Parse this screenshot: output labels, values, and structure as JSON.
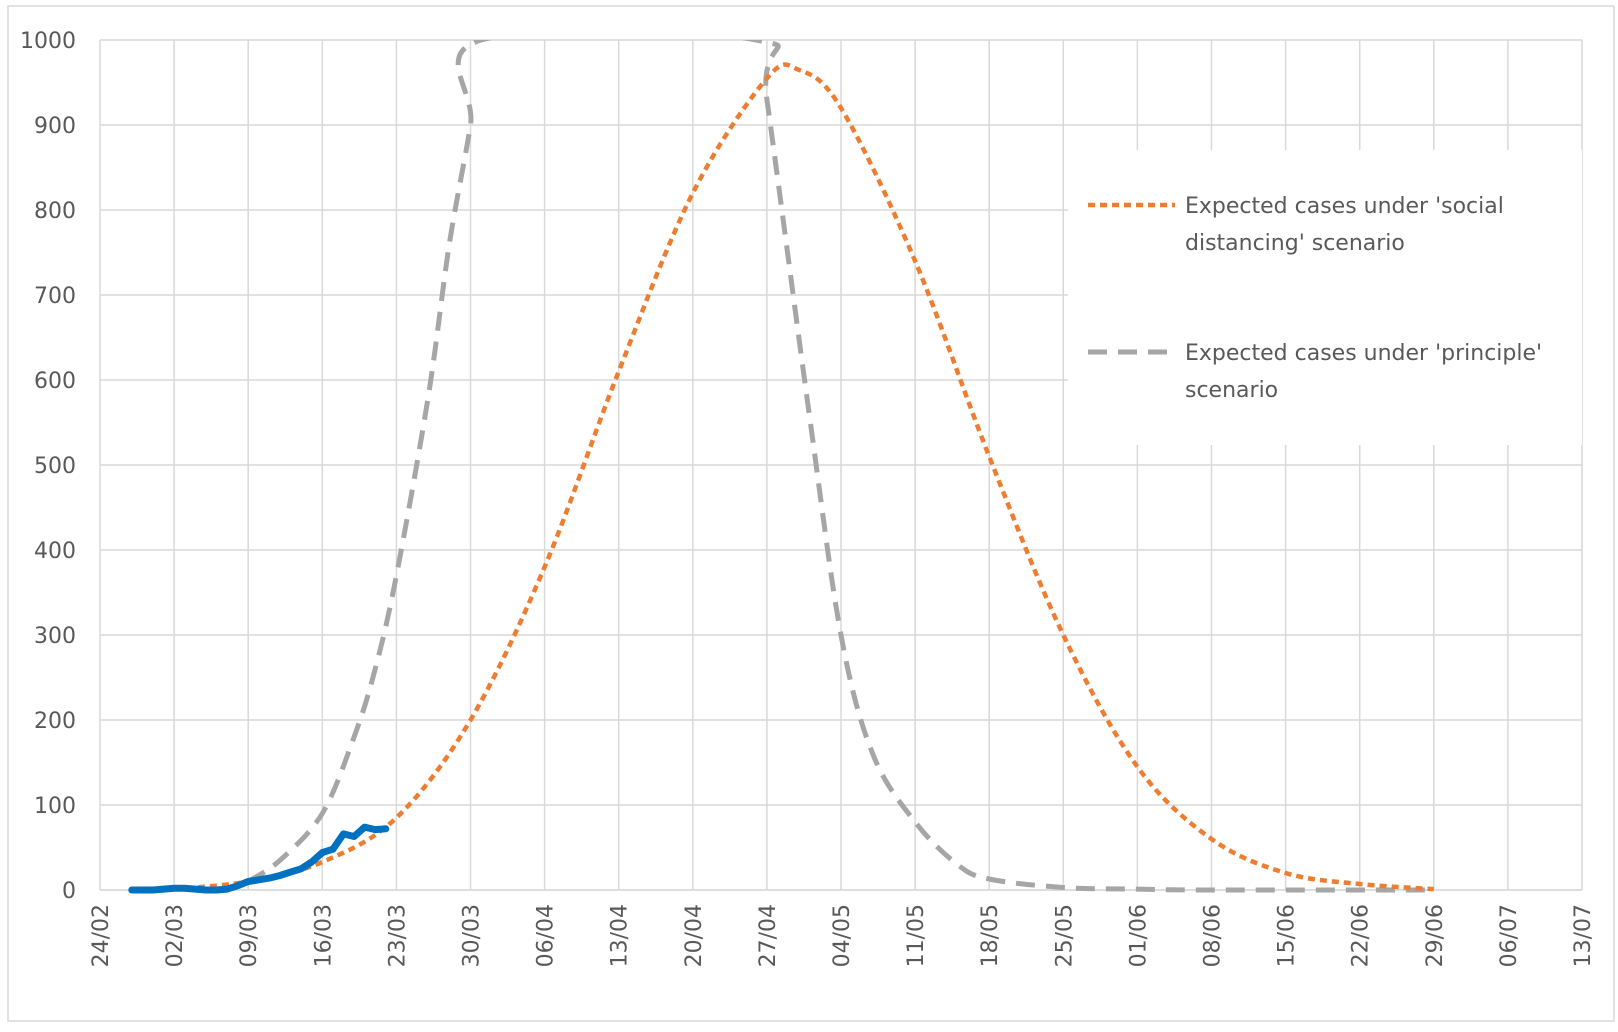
{
  "chart_data": {
    "type": "line",
    "title": "",
    "xlabel": "",
    "ylabel": "",
    "ylim": [
      0,
      1000
    ],
    "xlim": [
      "24/02",
      "13/07"
    ],
    "yticks": [
      0,
      100,
      200,
      300,
      400,
      500,
      600,
      700,
      800,
      900,
      1000
    ],
    "xticks": [
      "24/02",
      "02/03",
      "09/03",
      "16/03",
      "23/03",
      "30/03",
      "06/04",
      "13/04",
      "20/04",
      "27/04",
      "04/05",
      "11/05",
      "18/05",
      "25/05",
      "01/06",
      "08/06",
      "15/06",
      "22/06",
      "29/06",
      "06/07",
      "13/07"
    ],
    "grid": true,
    "legend_position": "top-right",
    "series": [
      {
        "name": "",
        "color": "#0070c0",
        "style": "solid",
        "points": [
          [
            "27/02",
            0
          ],
          [
            "28/02",
            0
          ],
          [
            "29/02",
            0
          ],
          [
            "01/03",
            1
          ],
          [
            "02/03",
            2
          ],
          [
            "03/03",
            2
          ],
          [
            "04/03",
            1
          ],
          [
            "05/03",
            0
          ],
          [
            "06/03",
            0
          ],
          [
            "07/03",
            1
          ],
          [
            "08/03",
            5
          ],
          [
            "09/03",
            10
          ],
          [
            "10/03",
            12
          ],
          [
            "11/03",
            14
          ],
          [
            "12/03",
            17
          ],
          [
            "13/03",
            21
          ],
          [
            "14/03",
            25
          ],
          [
            "15/03",
            33
          ],
          [
            "16/03",
            44
          ],
          [
            "17/03",
            48
          ],
          [
            "18/03",
            66
          ],
          [
            "19/03",
            63
          ],
          [
            "20/03",
            74
          ],
          [
            "21/03",
            71
          ],
          [
            "22/03",
            72
          ]
        ]
      },
      {
        "name": "Expected cases under 'social distancing' scenario",
        "color": "#ed7d31",
        "style": "dotted",
        "points": [
          [
            "02/03",
            1
          ],
          [
            "09/03",
            10
          ],
          [
            "16/03",
            33
          ],
          [
            "23/03",
            85
          ],
          [
            "30/03",
            200
          ],
          [
            "06/04",
            380
          ],
          [
            "13/04",
            610
          ],
          [
            "20/04",
            820
          ],
          [
            "27/04",
            955
          ],
          [
            "30/04",
            965
          ],
          [
            "04/05",
            920
          ],
          [
            "11/05",
            740
          ],
          [
            "18/05",
            510
          ],
          [
            "25/05",
            300
          ],
          [
            "01/06",
            145
          ],
          [
            "08/06",
            60
          ],
          [
            "15/06",
            20
          ],
          [
            "22/06",
            7
          ],
          [
            "29/06",
            1
          ]
        ]
      },
      {
        "name": "Expected cases under 'principle' scenario",
        "color": "#a6a6a6",
        "style": "dashed",
        "points": [
          [
            "09/03",
            10
          ],
          [
            "12/03",
            35
          ],
          [
            "16/03",
            90
          ],
          [
            "19/03",
            180
          ],
          [
            "21/03",
            260
          ],
          [
            "23/03",
            370
          ],
          [
            "26/03",
            580
          ],
          [
            "28/03",
            760
          ],
          [
            "30/03",
            900
          ],
          [
            "31/03",
            1000
          ],
          [
            "26/04",
            1000
          ],
          [
            "27/04",
            930
          ],
          [
            "01/05",
            560
          ],
          [
            "04/05",
            300
          ],
          [
            "07/05",
            160
          ],
          [
            "11/05",
            80
          ],
          [
            "15/05",
            30
          ],
          [
            "18/05",
            13
          ],
          [
            "25/05",
            3
          ],
          [
            "01/06",
            1
          ],
          [
            "08/06",
            0
          ],
          [
            "29/06",
            0
          ]
        ]
      }
    ]
  }
}
